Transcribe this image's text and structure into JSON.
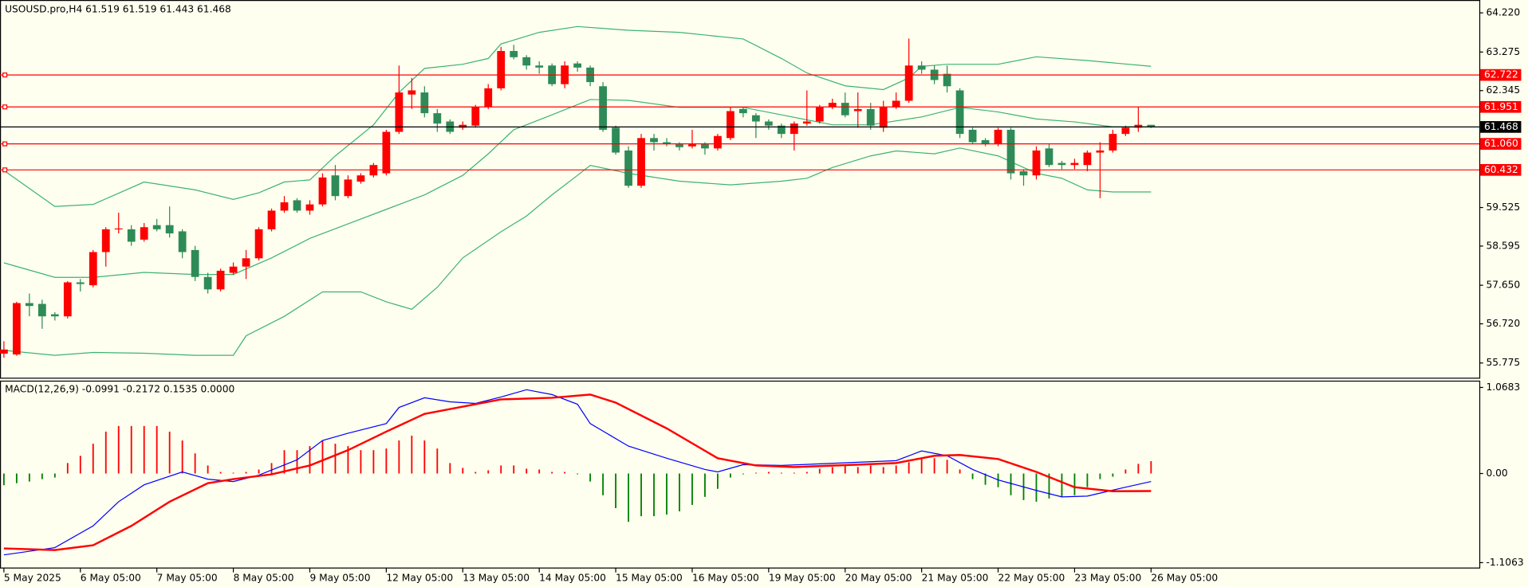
{
  "chart_data": [
    {
      "type": "candlestick",
      "title": "USOUSD.pro,H4  61.519 61.519 61.443 61.468",
      "xlim": [
        -0.306,
        115.75
      ],
      "xticks": [
        {
          "value": 0,
          "label": "5 May 2025"
        },
        {
          "value": 6,
          "label": "6 May 05:00"
        },
        {
          "value": 12,
          "label": "7 May 05:00"
        },
        {
          "value": 18,
          "label": "8 May 05:00"
        },
        {
          "value": 24,
          "label": "9 May 05:00"
        },
        {
          "value": 30,
          "label": "12 May 05:00"
        },
        {
          "value": 36,
          "label": "13 May 05:00"
        },
        {
          "value": 42,
          "label": "14 May 05:00"
        },
        {
          "value": 48,
          "label": "15 May 05:00"
        },
        {
          "value": 54,
          "label": "16 May 05:00"
        },
        {
          "value": 60,
          "label": "19 May 05:00"
        },
        {
          "value": 66,
          "label": "20 May 05:00"
        },
        {
          "value": 72,
          "label": "21 May 05:00"
        },
        {
          "value": 78,
          "label": "22 May 05:00"
        },
        {
          "value": 84,
          "label": "23 May 05:00"
        },
        {
          "value": 90,
          "label": "26 May 05:00"
        }
      ],
      "ylim": [
        55.42,
        64.53
      ],
      "yticks": [
        {
          "value": 64.22,
          "label": "64.220"
        },
        63.275,
        62.345,
        59.525,
        58.595,
        {
          "value": 57.65,
          "label": "57.650"
        },
        {
          "value": 56.72,
          "label": "56.720"
        },
        55.775
      ],
      "up_color": "#ff0000",
      "down_color": "#2e8b57",
      "open": [
        56.0,
        55.98,
        57.22,
        57.2,
        56.95,
        56.9,
        57.72,
        57.65,
        58.45,
        59.0,
        59.0,
        58.75,
        59.1,
        59.1,
        58.95,
        58.5,
        57.85,
        57.55,
        57.95,
        58.1,
        58.3,
        59.0,
        59.45,
        59.7,
        59.45,
        59.6,
        60.3,
        59.8,
        60.15,
        60.3,
        60.35,
        61.35,
        62.25,
        62.3,
        61.8,
        61.6,
        61.45,
        61.5,
        61.95,
        62.4,
        63.3,
        63.15,
        62.95,
        62.95,
        62.5,
        63.0,
        62.9,
        62.45,
        61.45,
        60.9,
        60.05,
        61.2,
        61.1,
        61.05,
        61.0,
        61.05,
        60.95,
        61.2,
        61.9,
        61.75,
        61.6,
        61.5,
        61.3,
        61.55,
        61.6,
        61.95,
        62.05,
        61.85,
        61.9,
        61.45,
        61.95,
        62.1,
        62.95,
        62.85,
        62.75,
        62.35,
        61.4,
        61.15,
        61.05,
        61.4,
        60.4,
        60.3,
        60.95,
        60.6,
        60.55,
        60.55,
        60.85,
        60.9,
        61.3,
        61.45,
        61.519
      ],
      "high": [
        56.3,
        57.25,
        57.45,
        57.3,
        57.0,
        57.75,
        57.8,
        58.5,
        59.05,
        59.4,
        59.1,
        59.15,
        59.25,
        59.55,
        59.0,
        58.6,
        57.95,
        58.05,
        58.2,
        58.5,
        59.05,
        59.5,
        59.8,
        59.75,
        59.7,
        60.35,
        60.55,
        60.3,
        60.35,
        60.6,
        61.4,
        62.95,
        62.65,
        62.45,
        61.9,
        61.65,
        61.6,
        62.0,
        62.5,
        63.4,
        63.45,
        63.2,
        63.05,
        63.0,
        63.05,
        63.05,
        62.95,
        62.55,
        61.5,
        61.0,
        61.3,
        61.3,
        61.2,
        61.1,
        61.4,
        61.1,
        61.3,
        61.95,
        61.95,
        61.8,
        61.65,
        61.55,
        61.6,
        62.35,
        62.0,
        62.15,
        62.3,
        62.3,
        62.05,
        62.1,
        62.3,
        63.6,
        63.05,
        62.95,
        62.95,
        62.4,
        61.45,
        61.2,
        61.45,
        61.45,
        60.45,
        61.0,
        61.05,
        60.65,
        60.7,
        60.9,
        61.1,
        61.4,
        61.5,
        61.95,
        61.519
      ],
      "low": [
        55.9,
        55.95,
        56.9,
        56.6,
        56.8,
        56.85,
        57.5,
        57.6,
        58.1,
        58.9,
        58.6,
        58.7,
        58.95,
        58.8,
        58.3,
        57.75,
        57.45,
        57.5,
        57.9,
        57.8,
        58.25,
        58.95,
        59.4,
        59.4,
        59.35,
        59.55,
        59.7,
        59.75,
        60.1,
        60.25,
        60.3,
        61.3,
        61.9,
        61.7,
        61.35,
        61.3,
        61.4,
        61.45,
        61.9,
        62.35,
        63.1,
        62.85,
        62.75,
        62.45,
        62.4,
        62.8,
        62.45,
        61.35,
        60.8,
        60.0,
        60.0,
        60.9,
        61.0,
        60.9,
        60.95,
        60.8,
        60.9,
        61.15,
        61.7,
        61.2,
        61.4,
        61.2,
        60.9,
        61.5,
        61.55,
        61.9,
        61.7,
        61.45,
        61.4,
        61.35,
        61.9,
        62.05,
        62.75,
        62.5,
        62.3,
        61.2,
        61.05,
        61.0,
        61.0,
        60.2,
        60.05,
        60.2,
        60.5,
        60.45,
        60.45,
        60.4,
        59.75,
        60.85,
        61.25,
        61.35,
        61.443
      ],
      "close": [
        56.1,
        57.22,
        57.15,
        56.9,
        56.9,
        57.72,
        57.68,
        58.45,
        59.0,
        59.02,
        58.7,
        59.05,
        59.0,
        58.9,
        58.45,
        57.85,
        57.55,
        58.0,
        58.1,
        58.3,
        59.0,
        59.45,
        59.65,
        59.45,
        59.6,
        60.25,
        59.8,
        60.2,
        60.3,
        60.55,
        61.35,
        62.3,
        62.35,
        61.8,
        61.55,
        61.35,
        61.52,
        61.95,
        62.4,
        63.3,
        63.15,
        62.95,
        62.9,
        62.5,
        62.95,
        62.9,
        62.55,
        61.4,
        60.85,
        60.05,
        61.2,
        61.1,
        61.05,
        60.98,
        61.05,
        60.95,
        61.25,
        61.85,
        61.8,
        61.6,
        61.5,
        61.3,
        61.55,
        61.6,
        61.95,
        62.05,
        61.75,
        61.9,
        61.5,
        61.95,
        62.1,
        62.95,
        62.85,
        62.6,
        62.45,
        61.3,
        61.1,
        61.05,
        61.4,
        60.35,
        60.3,
        60.9,
        60.55,
        60.55,
        60.6,
        60.85,
        60.9,
        61.3,
        61.45,
        61.52,
        61.468
      ],
      "band_color": "#3cb371",
      "bands": [
        {
          "x": [
            0,
            4,
            7,
            11,
            15,
            18,
            20,
            22,
            24,
            26,
            29,
            31,
            33,
            36,
            38,
            39,
            42,
            45,
            49,
            53,
            58,
            61,
            63,
            66,
            69,
            71,
            72,
            74,
            78,
            81,
            85,
            90
          ],
          "values": [
            60.42,
            59.55,
            59.6,
            60.14,
            59.95,
            59.72,
            59.88,
            60.14,
            60.19,
            60.77,
            61.52,
            62.3,
            62.88,
            62.98,
            63.12,
            63.47,
            63.75,
            63.89,
            63.8,
            63.75,
            63.59,
            63.12,
            62.77,
            62.46,
            62.37,
            62.65,
            62.93,
            62.98,
            62.98,
            63.16,
            63.07,
            62.93
          ]
        },
        {
          "x": [
            0,
            4,
            7,
            11,
            15,
            18,
            21,
            24,
            27,
            30,
            33,
            36,
            38,
            40,
            43,
            46,
            49,
            53,
            58,
            61,
            65,
            68,
            72,
            75,
            78,
            81,
            84,
            87,
            90
          ],
          "values": [
            58.19,
            57.84,
            57.84,
            57.96,
            57.91,
            57.91,
            58.31,
            58.78,
            59.13,
            59.48,
            59.83,
            60.3,
            60.82,
            61.4,
            61.76,
            62.13,
            62.11,
            61.94,
            61.94,
            61.76,
            61.52,
            61.52,
            61.71,
            61.94,
            61.83,
            61.66,
            61.59,
            61.47,
            61.47
          ]
        },
        {
          "x": [
            0,
            4,
            7,
            11,
            15,
            18,
            19,
            22,
            25,
            28,
            30,
            32,
            34,
            36,
            39,
            41,
            43,
            45,
            46,
            49,
            53,
            57,
            61,
            63,
            65,
            68,
            70,
            73,
            75,
            78,
            81,
            83,
            85,
            87,
            90
          ],
          "values": [
            56.08,
            55.96,
            56.03,
            56.01,
            55.96,
            55.96,
            56.43,
            56.9,
            57.49,
            57.49,
            57.25,
            57.07,
            57.6,
            58.31,
            58.94,
            59.32,
            59.83,
            60.3,
            60.54,
            60.35,
            60.16,
            60.07,
            60.16,
            60.23,
            60.49,
            60.77,
            60.89,
            60.82,
            60.96,
            60.77,
            60.35,
            60.23,
            59.95,
            59.9,
            59.9
          ]
        }
      ],
      "levels": [
        62.722,
        61.951,
        {
          "value": 61.06,
          "label": "61.060"
        },
        60.432
      ],
      "level_color": "#ff0000",
      "last_price": 61.468,
      "last_color": "#000000"
    },
    {
      "type": "macd",
      "title": "MACD(12,26,9) -0.0991 -0.2172 0.1535 0.0000",
      "ylim": [
        -1.167,
        1.153
      ],
      "yticks": [
        1.0683,
        {
          "value": 0,
          "label": "0.00"
        },
        -1.1063
      ],
      "up_color": "#ff0000",
      "down_color": "#008000",
      "histogram": [
        -0.145,
        -0.12,
        -0.1,
        -0.07,
        -0.05,
        0.13,
        0.22,
        0.37,
        0.52,
        0.59,
        0.59,
        0.59,
        0.59,
        0.52,
        0.41,
        0.25,
        0.1,
        0.02,
        0.01,
        0.02,
        0.05,
        0.13,
        0.29,
        0.29,
        0.34,
        0.41,
        0.37,
        0.34,
        0.29,
        0.29,
        0.31,
        0.41,
        0.47,
        0.41,
        0.31,
        0.13,
        0.07,
        0.02,
        0.04,
        0.1,
        0.1,
        0.06,
        0.05,
        0.02,
        0.02,
        -0.01,
        -0.1,
        -0.27,
        -0.43,
        -0.6,
        -0.53,
        -0.53,
        -0.51,
        -0.47,
        -0.39,
        -0.29,
        -0.19,
        -0.05,
        -0.01,
        0.01,
        0.02,
        0.01,
        0.01,
        0.02,
        0.06,
        0.08,
        0.1,
        0.08,
        0.1,
        0.08,
        0.1,
        0.14,
        0.19,
        0.19,
        0.17,
        0.05,
        -0.07,
        -0.14,
        -0.17,
        -0.27,
        -0.33,
        -0.35,
        -0.31,
        -0.29,
        -0.27,
        -0.17,
        -0.07,
        -0.04,
        0.05,
        0.12,
        0.1535
      ],
      "main": {
        "color": "#0000ff",
        "x": [
          0,
          4,
          7,
          9,
          11,
          14,
          16,
          18,
          20,
          23,
          25,
          27,
          30,
          31,
          33,
          35,
          37,
          39,
          41,
          43,
          45,
          46,
          49,
          52,
          55,
          56,
          58,
          61,
          64,
          67,
          70,
          72,
          74,
          76,
          78,
          81,
          83,
          85,
          88,
          90
        ],
        "values": [
          -1.01,
          -0.92,
          -0.65,
          -0.35,
          -0.14,
          0.02,
          -0.07,
          -0.1,
          -0.02,
          0.17,
          0.41,
          0.5,
          0.62,
          0.82,
          0.94,
          0.89,
          0.87,
          0.95,
          1.04,
          0.98,
          0.86,
          0.62,
          0.34,
          0.19,
          0.05,
          0.02,
          0.11,
          0.1,
          0.12,
          0.14,
          0.16,
          0.28,
          0.22,
          0.05,
          -0.08,
          -0.21,
          -0.29,
          -0.28,
          -0.17,
          -0.0991
        ]
      },
      "signal": {
        "color": "#ff0000",
        "x": [
          0,
          4,
          7,
          10,
          13,
          16,
          18,
          21,
          24,
          27,
          30,
          33,
          36,
          39,
          43,
          46,
          48,
          52,
          56,
          59,
          62,
          67,
          70,
          73,
          75,
          78,
          81,
          84,
          87,
          90
        ],
        "values": [
          -0.93,
          -0.95,
          -0.89,
          -0.65,
          -0.35,
          -0.12,
          -0.07,
          -0.01,
          0.1,
          0.29,
          0.52,
          0.74,
          0.83,
          0.92,
          0.94,
          0.98,
          0.88,
          0.56,
          0.19,
          0.1,
          0.08,
          0.11,
          0.13,
          0.22,
          0.23,
          0.18,
          0.02,
          -0.17,
          -0.22,
          -0.2172
        ]
      }
    }
  ]
}
